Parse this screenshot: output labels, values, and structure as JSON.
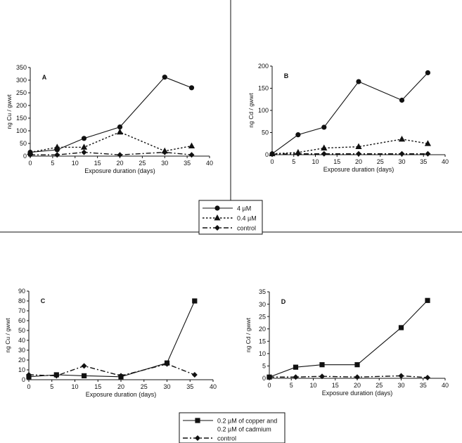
{
  "chart_data": [
    {
      "panel": "A",
      "type": "line",
      "xlabel": "Exposure duration (days)",
      "ylabel": "ng Cu / gwwt",
      "xlim": [
        0,
        40
      ],
      "ylim": [
        0,
        350
      ],
      "xticks": [
        0,
        5,
        10,
        15,
        20,
        25,
        30,
        35,
        40
      ],
      "yticks": [
        0,
        50,
        100,
        150,
        200,
        250,
        300,
        350
      ],
      "series": [
        {
          "name": "4 µM",
          "marker": "circle",
          "dash": "solid",
          "x": [
            0,
            6,
            12,
            20,
            30,
            36
          ],
          "y": [
            15,
            25,
            70,
            115,
            312,
            270
          ]
        },
        {
          "name": "0.4 µM",
          "marker": "triangle",
          "dash": "dotted",
          "x": [
            0,
            6,
            12,
            20,
            30,
            36
          ],
          "y": [
            15,
            35,
            35,
            95,
            20,
            40
          ]
        },
        {
          "name": "control",
          "marker": "diamond",
          "dash": "dashdot",
          "x": [
            0,
            6,
            12,
            20,
            30,
            36
          ],
          "y": [
            5,
            5,
            15,
            5,
            15,
            5
          ]
        }
      ]
    },
    {
      "panel": "B",
      "type": "line",
      "xlabel": "Exposure duration (days)",
      "ylabel": "ng Cd / gwwt",
      "xlim": [
        0,
        40
      ],
      "ylim": [
        0,
        200
      ],
      "xticks": [
        0,
        5,
        10,
        15,
        20,
        25,
        30,
        35,
        40
      ],
      "yticks": [
        0,
        50,
        100,
        150,
        200
      ],
      "series": [
        {
          "name": "4 µM",
          "marker": "circle",
          "dash": "solid",
          "x": [
            0,
            6,
            12,
            20,
            30,
            36
          ],
          "y": [
            2,
            45,
            62,
            165,
            123,
            185
          ]
        },
        {
          "name": "0.4 µM",
          "marker": "triangle",
          "dash": "dotted",
          "x": [
            0,
            6,
            12,
            20,
            30,
            36
          ],
          "y": [
            2,
            5,
            15,
            18,
            35,
            25
          ]
        },
        {
          "name": "control",
          "marker": "diamond",
          "dash": "dashdot",
          "x": [
            0,
            6,
            12,
            20,
            30,
            36
          ],
          "y": [
            1,
            2,
            2,
            2,
            2,
            2
          ]
        }
      ]
    },
    {
      "panel": "C",
      "type": "line",
      "xlabel": "Exposure duration (days)",
      "ylabel": "ng Cu / gwwt",
      "xlim": [
        0,
        40
      ],
      "ylim": [
        0,
        90
      ],
      "xticks": [
        0,
        5,
        10,
        15,
        20,
        25,
        30,
        35,
        40
      ],
      "yticks": [
        0,
        10,
        20,
        30,
        40,
        50,
        60,
        70,
        80,
        90
      ],
      "series": [
        {
          "name": "0.2 µM of copper and 0.2 µM of cadmium",
          "marker": "square",
          "dash": "solid",
          "x": [
            0,
            6,
            12,
            20,
            30,
            36
          ],
          "y": [
            3,
            5,
            4,
            3,
            17,
            80
          ]
        },
        {
          "name": "control",
          "marker": "diamond",
          "dash": "dashdot",
          "x": [
            0,
            6,
            12,
            20,
            30,
            36
          ],
          "y": [
            5,
            4,
            14,
            4,
            16,
            5
          ]
        }
      ]
    },
    {
      "panel": "D",
      "type": "line",
      "xlabel": "Exposure duration (days)",
      "ylabel": "ng Cd / gwwt",
      "xlim": [
        0,
        40
      ],
      "ylim": [
        0,
        35
      ],
      "xticks": [
        0,
        5,
        10,
        15,
        20,
        25,
        30,
        35,
        40
      ],
      "yticks": [
        0,
        5,
        10,
        15,
        20,
        25,
        30,
        35
      ],
      "series": [
        {
          "name": "0.2 µM of copper and 0.2 µM of cadmium",
          "marker": "square",
          "dash": "solid",
          "x": [
            0,
            6,
            12,
            20,
            30,
            36
          ],
          "y": [
            0.5,
            4.5,
            5.5,
            5.5,
            20.5,
            31.5
          ]
        },
        {
          "name": "control",
          "marker": "diamond",
          "dash": "dashdot",
          "x": [
            0,
            6,
            12,
            20,
            30,
            36
          ],
          "y": [
            0.5,
            0.5,
            0.8,
            0.5,
            1,
            0.3
          ]
        }
      ]
    }
  ],
  "legends": {
    "top": {
      "entries": [
        {
          "label": "4 µM",
          "marker": "circle",
          "dash": "solid"
        },
        {
          "label": "0.4 µM",
          "marker": "triangle",
          "dash": "dotted"
        },
        {
          "label": "control",
          "marker": "diamond",
          "dash": "dashdot"
        }
      ]
    },
    "bottom": {
      "entries": [
        {
          "label_lines": [
            "0.2 µM of copper and",
            "0.2 µM of cadmium"
          ],
          "marker": "square",
          "dash": "solid"
        },
        {
          "label_lines": [
            "control"
          ],
          "marker": "diamond",
          "dash": "dashdot"
        }
      ]
    }
  },
  "colors": {
    "ink": "#111111",
    "background": "#ffffff"
  }
}
